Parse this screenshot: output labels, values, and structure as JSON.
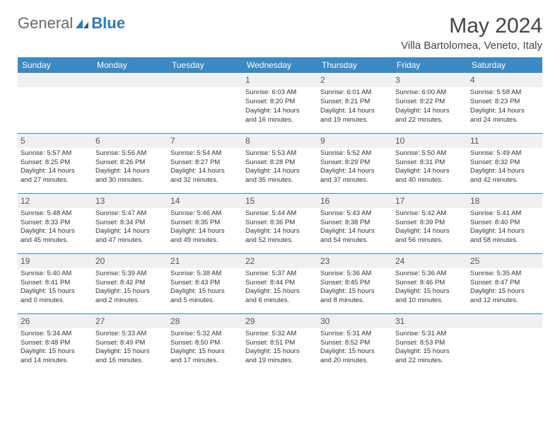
{
  "brand": {
    "general": "General",
    "blue": "Blue"
  },
  "title": "May 2024",
  "location": "Villa Bartolomea, Veneto, Italy",
  "colors": {
    "header_bg": "#3b8ac4",
    "header_text": "#ffffff",
    "daynum_bg": "#eef0f1",
    "rule": "#3b8ac4",
    "text": "#333333"
  },
  "weekdays": [
    "Sunday",
    "Monday",
    "Tuesday",
    "Wednesday",
    "Thursday",
    "Friday",
    "Saturday"
  ],
  "weeks": [
    [
      null,
      null,
      null,
      {
        "n": "1",
        "sr": "Sunrise: 6:03 AM",
        "ss": "Sunset: 8:20 PM",
        "d1": "Daylight: 14 hours",
        "d2": "and 16 minutes."
      },
      {
        "n": "2",
        "sr": "Sunrise: 6:01 AM",
        "ss": "Sunset: 8:21 PM",
        "d1": "Daylight: 14 hours",
        "d2": "and 19 minutes."
      },
      {
        "n": "3",
        "sr": "Sunrise: 6:00 AM",
        "ss": "Sunset: 8:22 PM",
        "d1": "Daylight: 14 hours",
        "d2": "and 22 minutes."
      },
      {
        "n": "4",
        "sr": "Sunrise: 5:58 AM",
        "ss": "Sunset: 8:23 PM",
        "d1": "Daylight: 14 hours",
        "d2": "and 24 minutes."
      }
    ],
    [
      {
        "n": "5",
        "sr": "Sunrise: 5:57 AM",
        "ss": "Sunset: 8:25 PM",
        "d1": "Daylight: 14 hours",
        "d2": "and 27 minutes."
      },
      {
        "n": "6",
        "sr": "Sunrise: 5:56 AM",
        "ss": "Sunset: 8:26 PM",
        "d1": "Daylight: 14 hours",
        "d2": "and 30 minutes."
      },
      {
        "n": "7",
        "sr": "Sunrise: 5:54 AM",
        "ss": "Sunset: 8:27 PM",
        "d1": "Daylight: 14 hours",
        "d2": "and 32 minutes."
      },
      {
        "n": "8",
        "sr": "Sunrise: 5:53 AM",
        "ss": "Sunset: 8:28 PM",
        "d1": "Daylight: 14 hours",
        "d2": "and 35 minutes."
      },
      {
        "n": "9",
        "sr": "Sunrise: 5:52 AM",
        "ss": "Sunset: 8:29 PM",
        "d1": "Daylight: 14 hours",
        "d2": "and 37 minutes."
      },
      {
        "n": "10",
        "sr": "Sunrise: 5:50 AM",
        "ss": "Sunset: 8:31 PM",
        "d1": "Daylight: 14 hours",
        "d2": "and 40 minutes."
      },
      {
        "n": "11",
        "sr": "Sunrise: 5:49 AM",
        "ss": "Sunset: 8:32 PM",
        "d1": "Daylight: 14 hours",
        "d2": "and 42 minutes."
      }
    ],
    [
      {
        "n": "12",
        "sr": "Sunrise: 5:48 AM",
        "ss": "Sunset: 8:33 PM",
        "d1": "Daylight: 14 hours",
        "d2": "and 45 minutes."
      },
      {
        "n": "13",
        "sr": "Sunrise: 5:47 AM",
        "ss": "Sunset: 8:34 PM",
        "d1": "Daylight: 14 hours",
        "d2": "and 47 minutes."
      },
      {
        "n": "14",
        "sr": "Sunrise: 5:46 AM",
        "ss": "Sunset: 8:35 PM",
        "d1": "Daylight: 14 hours",
        "d2": "and 49 minutes."
      },
      {
        "n": "15",
        "sr": "Sunrise: 5:44 AM",
        "ss": "Sunset: 8:36 PM",
        "d1": "Daylight: 14 hours",
        "d2": "and 52 minutes."
      },
      {
        "n": "16",
        "sr": "Sunrise: 5:43 AM",
        "ss": "Sunset: 8:38 PM",
        "d1": "Daylight: 14 hours",
        "d2": "and 54 minutes."
      },
      {
        "n": "17",
        "sr": "Sunrise: 5:42 AM",
        "ss": "Sunset: 8:39 PM",
        "d1": "Daylight: 14 hours",
        "d2": "and 56 minutes."
      },
      {
        "n": "18",
        "sr": "Sunrise: 5:41 AM",
        "ss": "Sunset: 8:40 PM",
        "d1": "Daylight: 14 hours",
        "d2": "and 58 minutes."
      }
    ],
    [
      {
        "n": "19",
        "sr": "Sunrise: 5:40 AM",
        "ss": "Sunset: 8:41 PM",
        "d1": "Daylight: 15 hours",
        "d2": "and 0 minutes."
      },
      {
        "n": "20",
        "sr": "Sunrise: 5:39 AM",
        "ss": "Sunset: 8:42 PM",
        "d1": "Daylight: 15 hours",
        "d2": "and 2 minutes."
      },
      {
        "n": "21",
        "sr": "Sunrise: 5:38 AM",
        "ss": "Sunset: 8:43 PM",
        "d1": "Daylight: 15 hours",
        "d2": "and 5 minutes."
      },
      {
        "n": "22",
        "sr": "Sunrise: 5:37 AM",
        "ss": "Sunset: 8:44 PM",
        "d1": "Daylight: 15 hours",
        "d2": "and 6 minutes."
      },
      {
        "n": "23",
        "sr": "Sunrise: 5:36 AM",
        "ss": "Sunset: 8:45 PM",
        "d1": "Daylight: 15 hours",
        "d2": "and 8 minutes."
      },
      {
        "n": "24",
        "sr": "Sunrise: 5:36 AM",
        "ss": "Sunset: 8:46 PM",
        "d1": "Daylight: 15 hours",
        "d2": "and 10 minutes."
      },
      {
        "n": "25",
        "sr": "Sunrise: 5:35 AM",
        "ss": "Sunset: 8:47 PM",
        "d1": "Daylight: 15 hours",
        "d2": "and 12 minutes."
      }
    ],
    [
      {
        "n": "26",
        "sr": "Sunrise: 5:34 AM",
        "ss": "Sunset: 8:48 PM",
        "d1": "Daylight: 15 hours",
        "d2": "and 14 minutes."
      },
      {
        "n": "27",
        "sr": "Sunrise: 5:33 AM",
        "ss": "Sunset: 8:49 PM",
        "d1": "Daylight: 15 hours",
        "d2": "and 16 minutes."
      },
      {
        "n": "28",
        "sr": "Sunrise: 5:32 AM",
        "ss": "Sunset: 8:50 PM",
        "d1": "Daylight: 15 hours",
        "d2": "and 17 minutes."
      },
      {
        "n": "29",
        "sr": "Sunrise: 5:32 AM",
        "ss": "Sunset: 8:51 PM",
        "d1": "Daylight: 15 hours",
        "d2": "and 19 minutes."
      },
      {
        "n": "30",
        "sr": "Sunrise: 5:31 AM",
        "ss": "Sunset: 8:52 PM",
        "d1": "Daylight: 15 hours",
        "d2": "and 20 minutes."
      },
      {
        "n": "31",
        "sr": "Sunrise: 5:31 AM",
        "ss": "Sunset: 8:53 PM",
        "d1": "Daylight: 15 hours",
        "d2": "and 22 minutes."
      },
      null
    ]
  ]
}
